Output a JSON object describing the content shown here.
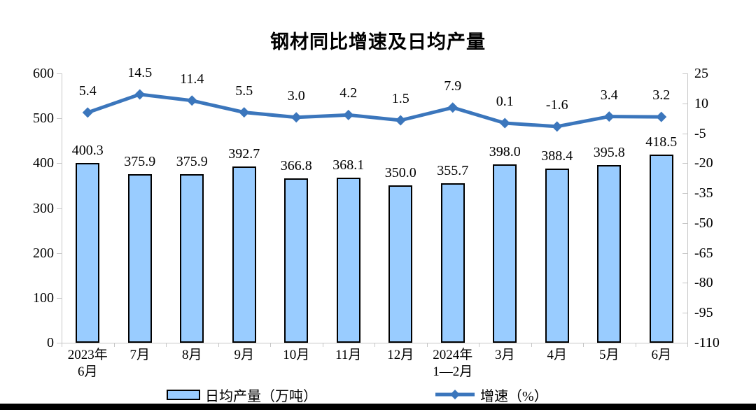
{
  "chart_data": {
    "type": "combo",
    "title": "钢材同比增速及日均产量",
    "categories": [
      "2023年\n6月",
      "7月",
      "8月",
      "9月",
      "10月",
      "11月",
      "12月",
      "2024年\n1—2月",
      "3月",
      "4月",
      "5月",
      "6月"
    ],
    "series": [
      {
        "name": "日均产量（万吨）",
        "type": "bar",
        "axis": "left",
        "values": [
          400.3,
          375.9,
          375.9,
          392.7,
          366.8,
          368.1,
          350.0,
          355.7,
          398.0,
          388.4,
          395.8,
          418.5
        ],
        "fill_color": "#99CCFF",
        "border_color": "#000000"
      },
      {
        "name": "增速（%）",
        "type": "line",
        "axis": "right",
        "values": [
          5.4,
          14.5,
          11.4,
          5.5,
          3.0,
          4.2,
          1.5,
          7.9,
          0.1,
          -1.6,
          3.4,
          3.2
        ],
        "color": "#3B76BC",
        "marker": "diamond"
      }
    ],
    "left_axis": {
      "min": 0,
      "max": 600,
      "ticks": [
        600,
        500,
        400,
        300,
        200,
        100,
        0
      ]
    },
    "right_axis": {
      "min": -110,
      "max": 25,
      "ticks": [
        25,
        10,
        -5,
        -20,
        -35,
        -50,
        -65,
        -80,
        -95,
        -110
      ]
    },
    "grid": false,
    "legend_position": "bottom",
    "axis_color": "#C6C6C6",
    "label_decimals": 1
  }
}
